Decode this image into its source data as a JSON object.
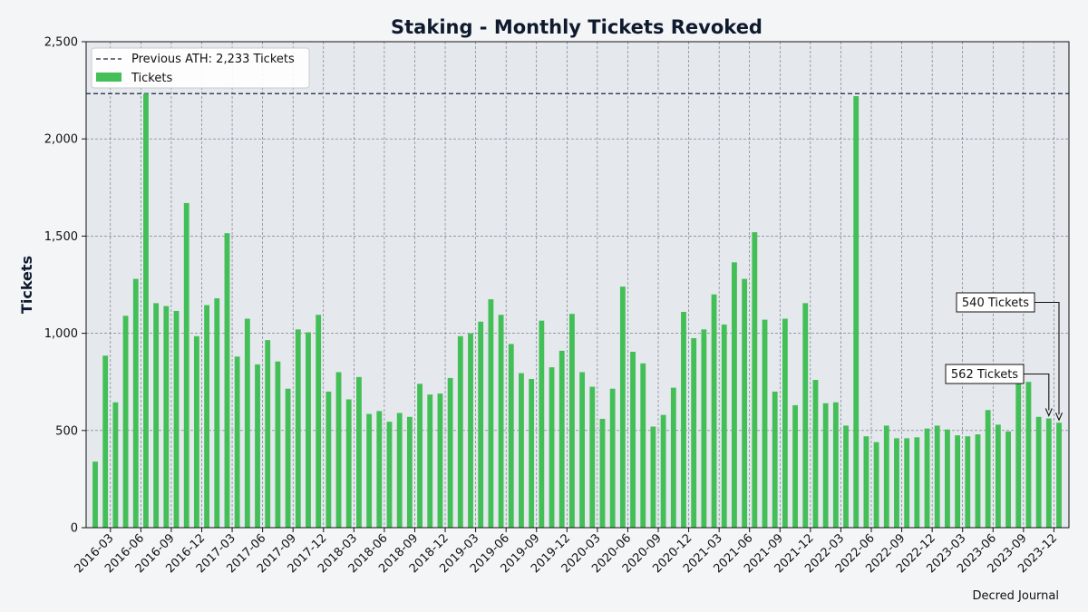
{
  "chart_data": {
    "type": "bar",
    "title": "Staking - Monthly Tickets Revoked",
    "ylabel": "Tickets",
    "xlabel": "",
    "ylim": [
      0,
      2500
    ],
    "yticks": [
      0,
      500,
      1000,
      1500,
      2000,
      2500
    ],
    "ytick_labels": [
      "0",
      "500",
      "1,000",
      "1,500",
      "2,000",
      "2,500"
    ],
    "xtick_labels": [
      "2016-03",
      "2016-06",
      "2016-09",
      "2016-12",
      "2017-03",
      "2017-06",
      "2017-09",
      "2017-12",
      "2018-03",
      "2018-06",
      "2018-09",
      "2018-12",
      "2019-03",
      "2019-06",
      "2019-09",
      "2019-12",
      "2020-03",
      "2020-06",
      "2020-09",
      "2020-12",
      "2021-03",
      "2021-06",
      "2021-09",
      "2021-12",
      "2022-03",
      "2022-06",
      "2022-09",
      "2022-12",
      "2023-03",
      "2023-06",
      "2023-09",
      "2023-12"
    ],
    "grid": true,
    "legend_position": "top-left",
    "series": [
      {
        "name": "Tickets",
        "color": "#43bf57",
        "categories": [
          "2016-02",
          "2016-03",
          "2016-04",
          "2016-05",
          "2016-06",
          "2016-07",
          "2016-08",
          "2016-09",
          "2016-10",
          "2016-11",
          "2016-12",
          "2017-01",
          "2017-02",
          "2017-03",
          "2017-04",
          "2017-05",
          "2017-06",
          "2017-07",
          "2017-08",
          "2017-09",
          "2017-10",
          "2017-11",
          "2017-12",
          "2018-01",
          "2018-02",
          "2018-03",
          "2018-04",
          "2018-05",
          "2018-06",
          "2018-07",
          "2018-08",
          "2018-09",
          "2018-10",
          "2018-11",
          "2018-12",
          "2019-01",
          "2019-02",
          "2019-03",
          "2019-04",
          "2019-05",
          "2019-06",
          "2019-07",
          "2019-08",
          "2019-09",
          "2019-10",
          "2019-11",
          "2019-12",
          "2020-01",
          "2020-02",
          "2020-03",
          "2020-04",
          "2020-05",
          "2020-06",
          "2020-07",
          "2020-08",
          "2020-09",
          "2020-10",
          "2020-11",
          "2020-12",
          "2021-01",
          "2021-02",
          "2021-03",
          "2021-04",
          "2021-05",
          "2021-06",
          "2021-07",
          "2021-08",
          "2021-09",
          "2021-10",
          "2021-11",
          "2021-12",
          "2022-01",
          "2022-02",
          "2022-03",
          "2022-04",
          "2022-05",
          "2022-06",
          "2022-07",
          "2022-08",
          "2022-09",
          "2022-10",
          "2022-11",
          "2022-12",
          "2023-01",
          "2023-02",
          "2023-03",
          "2023-04",
          "2023-05",
          "2023-06",
          "2023-07",
          "2023-08",
          "2023-09",
          "2023-10",
          "2023-11",
          "2023-12",
          "2024-01"
        ],
        "values": [
          340,
          885,
          645,
          1090,
          1280,
          2233,
          1155,
          1140,
          1115,
          1670,
          985,
          1145,
          1180,
          1515,
          880,
          1075,
          840,
          965,
          855,
          715,
          1020,
          1005,
          1095,
          700,
          800,
          660,
          775,
          585,
          600,
          545,
          590,
          570,
          740,
          685,
          690,
          770,
          985,
          1000,
          1060,
          1175,
          1095,
          945,
          795,
          765,
          1065,
          825,
          910,
          1100,
          800,
          725,
          560,
          715,
          1240,
          905,
          845,
          520,
          580,
          720,
          1110,
          975,
          1020,
          1200,
          1045,
          1365,
          1280,
          1520,
          1070,
          700,
          1075,
          630,
          1155,
          760,
          640,
          645,
          525,
          2220,
          470,
          440,
          525,
          460,
          460,
          465,
          510,
          525,
          505,
          475,
          470,
          480,
          605,
          530,
          495,
          740,
          750,
          570,
          562,
          540
        ]
      }
    ],
    "reference_line": {
      "name": "Previous ATH: 2,233 Tickets",
      "value": 2233,
      "color": "#1a2340"
    },
    "annotations": [
      {
        "text": "562 Tickets",
        "x": "2023-12",
        "y": 562
      },
      {
        "text": "540 Tickets",
        "x": "2024-01",
        "y": 540
      }
    ],
    "colors": {
      "plot_background": "#e5e8ec",
      "page_background": "#f3f5f7",
      "grid": "#6a6f86",
      "title": "#0f1a2e"
    }
  },
  "footer": {
    "credit": "Decred Journal"
  }
}
